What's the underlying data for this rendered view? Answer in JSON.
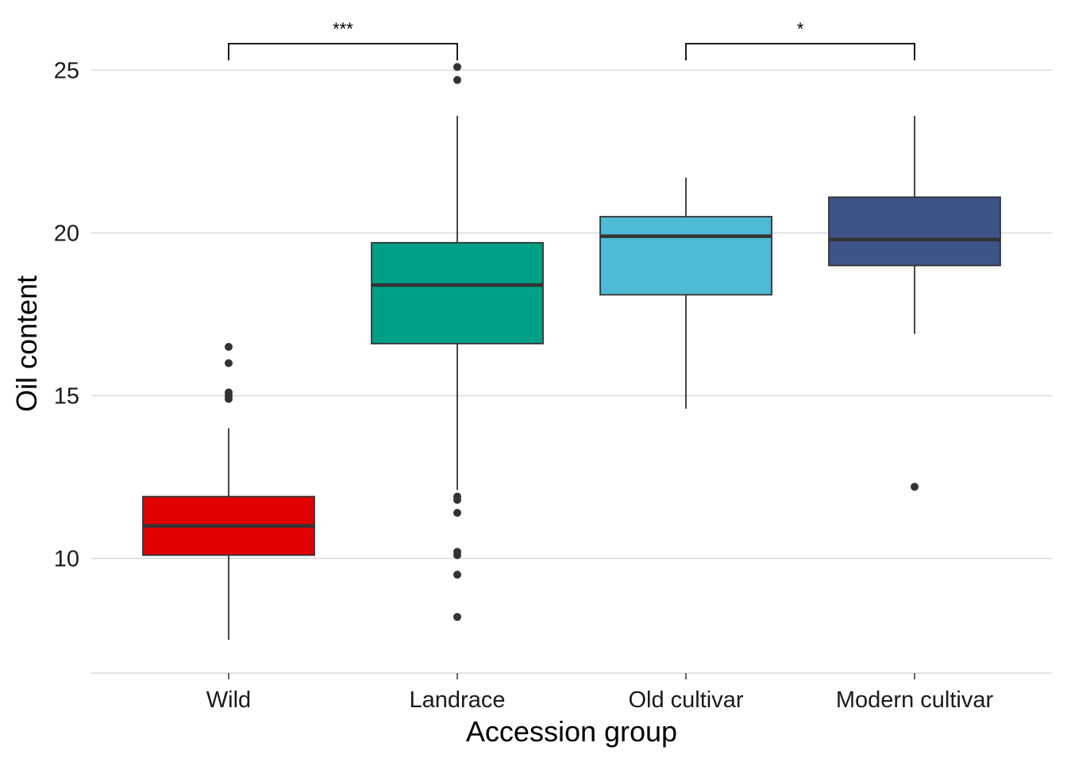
{
  "chart_data": {
    "type": "boxplot",
    "title": "",
    "xlabel": "Accession group",
    "ylabel": "Oil content",
    "ylim": [
      6.5,
      26.5
    ],
    "yticks": [
      10,
      15,
      20,
      25
    ],
    "ytick_labels": [
      "10",
      "15",
      "20",
      "25"
    ],
    "grid": "horizontal major gridlines",
    "legend": "none",
    "categories": [
      "Wild",
      "Landrace",
      "Old cultivar",
      "Modern cultivar"
    ],
    "boxes": [
      {
        "category": "Wild",
        "color": "#E00000",
        "q1": 10.1,
        "median": 11.0,
        "q3": 11.9,
        "whisker_low": 7.5,
        "whisker_high": 14.0,
        "outliers": [
          16.5,
          16.0,
          15.1,
          15.0,
          14.9
        ]
      },
      {
        "category": "Landrace",
        "color": "#00A087",
        "q1": 16.6,
        "median": 18.4,
        "q3": 19.7,
        "whisker_low": 12.1,
        "whisker_high": 23.6,
        "outliers": [
          25.1,
          24.7,
          11.9,
          11.8,
          11.4,
          10.2,
          10.1,
          9.5,
          8.2
        ]
      },
      {
        "category": "Old cultivar",
        "color": "#4DBBD5",
        "q1": 18.1,
        "median": 19.9,
        "q3": 20.5,
        "whisker_low": 14.6,
        "whisker_high": 21.7,
        "outliers": []
      },
      {
        "category": "Modern cultivar",
        "color": "#3C5488",
        "q1": 19.0,
        "median": 19.8,
        "q3": 21.1,
        "whisker_low": 16.9,
        "whisker_high": 23.6,
        "outliers": [
          12.2
        ]
      }
    ],
    "annotations": [
      {
        "from": "Wild",
        "to": "Landrace",
        "label": "***"
      },
      {
        "from": "Old cultivar",
        "to": "Modern cultivar",
        "label": "*"
      }
    ],
    "colors": {
      "box_border": "#333333",
      "median_line": "#333333",
      "outlier_point": "#333333",
      "gridline": "#D9D9D9",
      "bracket": "#000000"
    }
  }
}
